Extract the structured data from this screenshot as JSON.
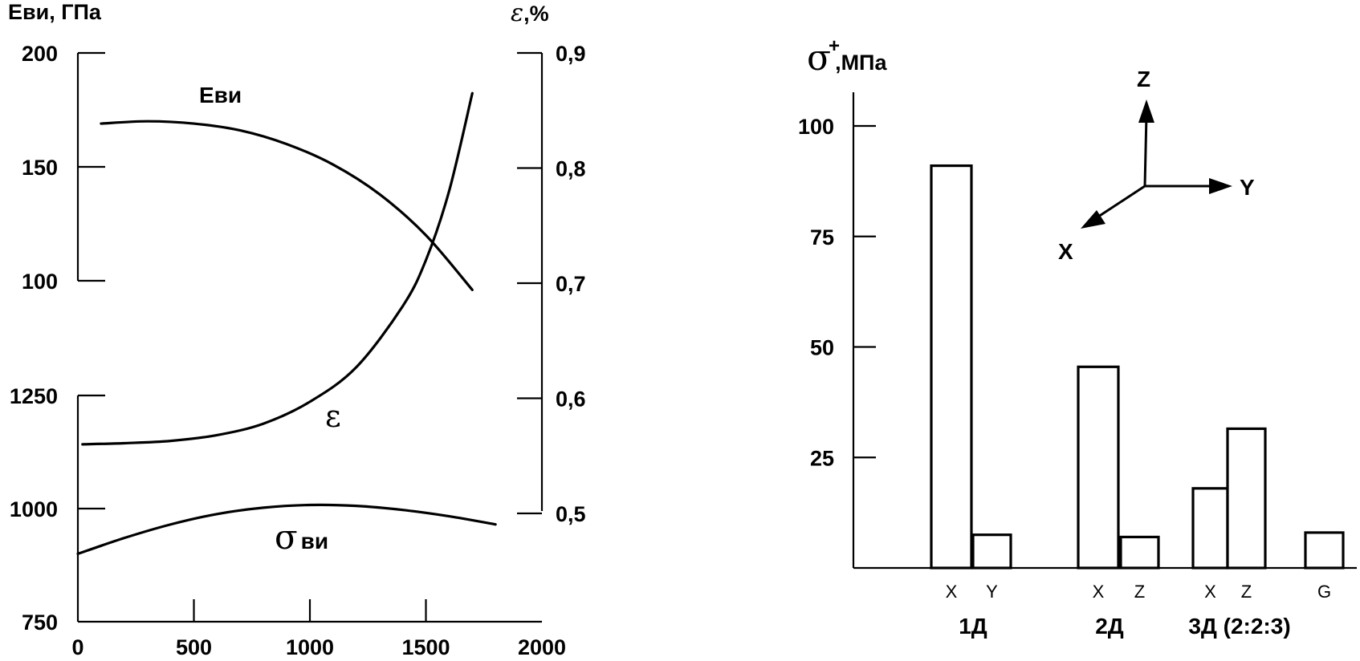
{
  "chart_data": [
    {
      "type": "line",
      "left_axis_label_top": "Еви, ГПа",
      "right_axis_label_glyph": "ε",
      "right_axis_label_unit": ",%",
      "left_ticks_upper": [
        {
          "v": 100,
          "t": "100"
        },
        {
          "v": 150,
          "t": "150"
        },
        {
          "v": 200,
          "t": "200"
        }
      ],
      "left_ticks_lower": [
        {
          "v": 750,
          "t": "750"
        },
        {
          "v": 1000,
          "t": "1000"
        },
        {
          "v": 1250,
          "t": "1250"
        }
      ],
      "right_ticks": [
        {
          "v": 0.5,
          "t": "0,5"
        },
        {
          "v": 0.6,
          "t": "0,6"
        },
        {
          "v": 0.7,
          "t": "0,7"
        },
        {
          "v": 0.8,
          "t": "0,8"
        },
        {
          "v": 0.9,
          "t": "0,9"
        }
      ],
      "x_ticks": [
        {
          "v": 0,
          "t": "0"
        },
        {
          "v": 500,
          "t": "500"
        },
        {
          "v": 1000,
          "t": "1000"
        },
        {
          "v": 1500,
          "t": "1500"
        },
        {
          "v": 2000,
          "t": "2000"
        }
      ],
      "xlim": [
        0,
        2000
      ],
      "series": [
        {
          "name": "Еви",
          "label_glyph": "",
          "label_sub": "",
          "axis": "E",
          "x": [
            100,
            300,
            500,
            700,
            900,
            1100,
            1300,
            1500,
            1700
          ],
          "y": [
            169,
            170,
            169,
            166,
            160,
            151,
            138,
            120,
            96
          ]
        },
        {
          "name": "",
          "label_glyph": "ε",
          "label_sub": "",
          "axis": "eps",
          "x": [
            20,
            200,
            400,
            600,
            800,
            1000,
            1200,
            1400,
            1500,
            1600,
            1700
          ],
          "y": [
            0.56,
            0.561,
            0.563,
            0.568,
            0.578,
            0.597,
            0.627,
            0.68,
            0.72,
            0.78,
            0.865
          ]
        },
        {
          "name": "",
          "label_glyph": "σ",
          "label_sub": "ви",
          "axis": "sigma",
          "x": [
            0,
            200,
            400,
            600,
            800,
            1000,
            1200,
            1400,
            1600,
            1800
          ],
          "y": [
            900,
            935,
            965,
            988,
            1002,
            1008,
            1006,
            997,
            983,
            965
          ]
        }
      ]
    },
    {
      "type": "bar",
      "ylabel_glyph": "σ",
      "ylabel_sup": "+",
      "ylabel_unit": ",МПа",
      "ylim": [
        0,
        107
      ],
      "y_ticks": [
        {
          "v": 25,
          "t": "25"
        },
        {
          "v": 50,
          "t": "50"
        },
        {
          "v": 75,
          "t": "75"
        },
        {
          "v": 100,
          "t": "100"
        }
      ],
      "bars": [
        {
          "label": "X",
          "group": "1Д",
          "value": 91
        },
        {
          "label": "Y",
          "group": "1Д",
          "value": 7.5
        },
        {
          "label": "X",
          "group": "2Д",
          "value": 45.5
        },
        {
          "label": "Z",
          "group": "2Д",
          "value": 7
        },
        {
          "label": "X",
          "group": "3Д (2:2:3)",
          "value": 18
        },
        {
          "label": "Z",
          "group": "3Д (2:2:3)",
          "value": 31.5
        },
        {
          "label": "G",
          "group": "3Д (2:2:3)",
          "value": 8
        }
      ],
      "groups": [
        "1Д",
        "2Д",
        "3Д (2:2:3)"
      ],
      "axes_icon": {
        "x": "X",
        "y": "Y",
        "z": "Z"
      }
    }
  ]
}
